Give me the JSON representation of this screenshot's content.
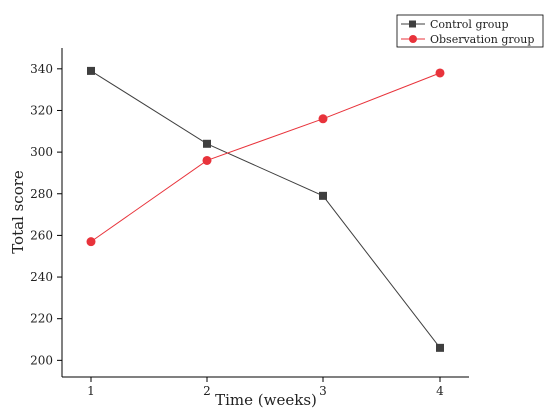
{
  "chart_data": {
    "type": "line",
    "title": "",
    "xlabel": "Time (weeks)",
    "ylabel": "Total score",
    "x": [
      1,
      2,
      3,
      4
    ],
    "x_tick_labels": [
      "1",
      "2",
      "3",
      "4"
    ],
    "yticks": [
      200,
      220,
      240,
      260,
      280,
      300,
      320,
      340
    ],
    "ylim": [
      192,
      350
    ],
    "grid": false,
    "legend_position": "top-right",
    "series": [
      {
        "name": "Control group",
        "values": [
          339,
          304,
          279,
          206
        ],
        "color": "#3f3f3f",
        "marker": "square"
      },
      {
        "name": "Observation group",
        "values": [
          257,
          296,
          316,
          338
        ],
        "color": "#e8333b",
        "marker": "circle"
      }
    ]
  }
}
